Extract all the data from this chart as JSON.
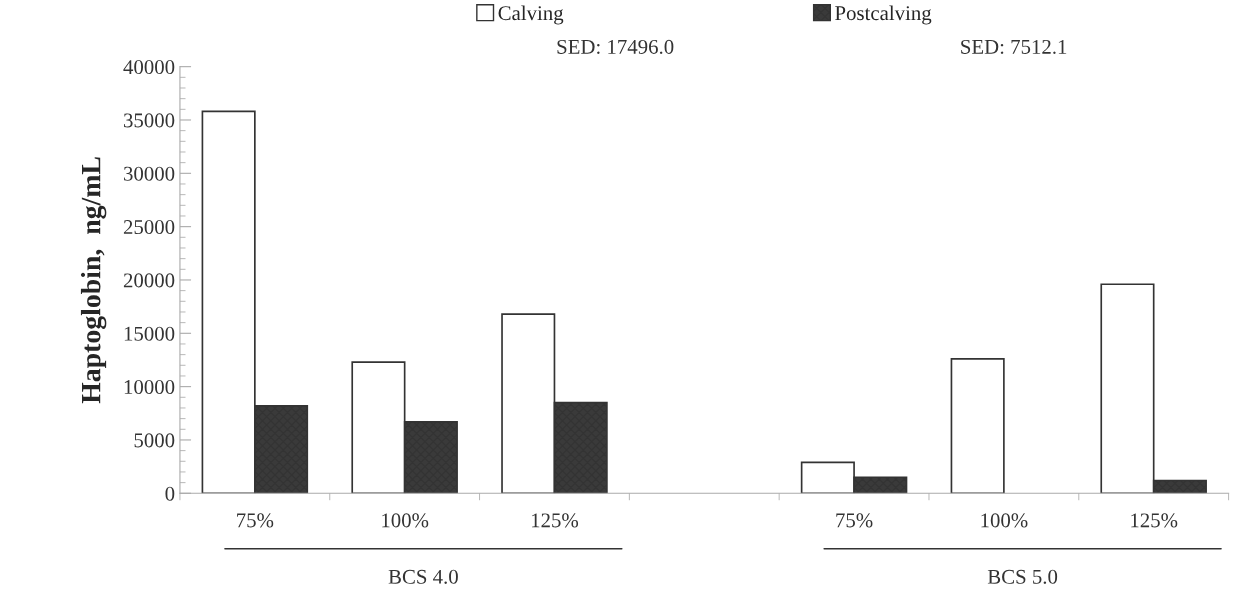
{
  "chart_data": {
    "type": "bar",
    "categories": [
      "75%",
      "100%",
      "125%",
      null,
      "75%",
      "100%",
      "125%"
    ],
    "series": [
      {
        "name": "Calving",
        "color": "#ffffff",
        "values": [
          35800,
          12300,
          16800,
          null,
          2900,
          12600,
          19600
        ]
      },
      {
        "name": "Postcalving",
        "color": "#3a3a3a",
        "values": [
          8200,
          6700,
          8500,
          null,
          1500,
          null,
          1200
        ]
      }
    ],
    "ylabel": "Haptoglobin,  ng/mL",
    "ylim": [
      0,
      40000
    ],
    "yticks": [
      0,
      5000,
      10000,
      15000,
      20000,
      25000,
      30000,
      35000,
      40000
    ],
    "grid": false,
    "legend": "top",
    "annotations": [
      "SED: 17496.0",
      "SED: 7512.1",
      "BCS 4.0",
      "BCS 5.0"
    ]
  }
}
